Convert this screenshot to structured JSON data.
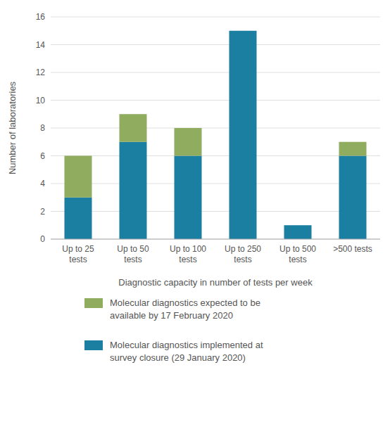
{
  "chart_data": {
    "type": "bar",
    "stacked": true,
    "categories": [
      "Up to 25\ntests",
      "Up to 50\ntests",
      "Up to 100\ntests",
      "Up to 250\ntests",
      "Up to 500\ntests",
      ">500 tests"
    ],
    "series": [
      {
        "name": "Molecular diagnostics implemented at\nsurvey closure (29 January 2020)",
        "color": "#1a7fa0",
        "values": [
          3,
          7,
          6,
          15,
          1,
          6
        ]
      },
      {
        "name": "Molecular diagnostics expected to be\navailable by 17 February 2020",
        "color": "#8fac5f",
        "values": [
          3,
          2,
          2,
          0,
          0,
          1
        ]
      }
    ],
    "xlabel": "Diagnostic capacity in number of tests per week",
    "ylabel": "Number of laboratories",
    "ylim": [
      0,
      16
    ],
    "yticks": [
      0,
      2,
      4,
      6,
      8,
      10,
      12,
      14,
      16
    ],
    "grid": true
  }
}
